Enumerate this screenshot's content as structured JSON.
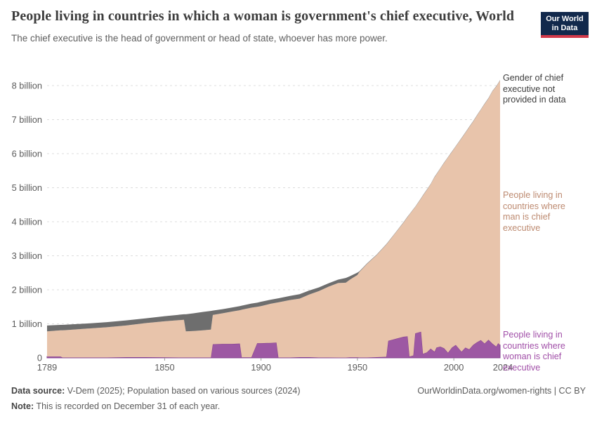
{
  "header": {
    "title": "People living in countries in which a woman is government's chief executive, World",
    "subtitle": "The chief executive is the head of government or head of state, whoever has more power."
  },
  "logo": {
    "line1": "Our World",
    "line2": "in Data",
    "bg": "#12294c",
    "accent": "#d2394a"
  },
  "chart_data": {
    "type": "area",
    "stacked": true,
    "xlim": [
      1789,
      2024
    ],
    "ylim": [
      0,
      8.16
    ],
    "unit": "billion people",
    "years": [
      1789,
      1796,
      1797,
      1800,
      1810,
      1820,
      1830,
      1840,
      1850,
      1860,
      1861,
      1865,
      1870,
      1874,
      1875,
      1880,
      1885,
      1889,
      1890,
      1895,
      1898,
      1900,
      1905,
      1908,
      1909,
      1915,
      1920,
      1925,
      1930,
      1935,
      1940,
      1944,
      1946,
      1950,
      1951,
      1955,
      1960,
      1965,
      1966,
      1970,
      1974,
      1976,
      1977,
      1979,
      1980,
      1983,
      1984,
      1986,
      1988,
      1990,
      1991,
      1993,
      1995,
      1997,
      1999,
      2001,
      2004,
      2006,
      2008,
      2010,
      2012,
      2014,
      2016,
      2018,
      2020,
      2022,
      2023,
      2024
    ],
    "series": [
      {
        "name": "woman-chief-executive",
        "annotation": "People living in\ncountries where\nwoman is chief\nexecutive",
        "color": "#9d58a3",
        "edge": "#83408f",
        "values": [
          0.04,
          0.04,
          0.01,
          0.01,
          0.01,
          0.01,
          0.02,
          0.02,
          0.015,
          0.01,
          0.01,
          0.01,
          0.01,
          0.01,
          0.4,
          0.41,
          0.41,
          0.42,
          0.015,
          0.015,
          0.43,
          0.43,
          0.44,
          0.45,
          0.01,
          0.01,
          0.02,
          0.02,
          0.01,
          0.01,
          0.008,
          0.008,
          0.015,
          0.015,
          0.01,
          0.01,
          0.02,
          0.03,
          0.5,
          0.56,
          0.62,
          0.63,
          0.04,
          0.07,
          0.72,
          0.77,
          0.12,
          0.16,
          0.27,
          0.18,
          0.3,
          0.33,
          0.28,
          0.15,
          0.3,
          0.38,
          0.18,
          0.3,
          0.25,
          0.38,
          0.46,
          0.52,
          0.42,
          0.53,
          0.42,
          0.33,
          0.43,
          0.38
        ]
      },
      {
        "name": "man-chief-executive",
        "annotation": "People living in\ncountries where\nman is chief\nexecutive",
        "color": "#e8c4ab",
        "edge": "",
        "values": [
          0.74,
          0.77,
          0.8,
          0.81,
          0.85,
          0.89,
          0.93,
          1.0,
          1.06,
          1.11,
          0.77,
          0.78,
          0.8,
          0.82,
          0.86,
          0.9,
          0.95,
          0.98,
          1.4,
          1.46,
          1.07,
          1.09,
          1.15,
          1.17,
          1.62,
          1.69,
          1.72,
          1.84,
          1.95,
          2.08,
          2.19,
          2.2,
          2.28,
          2.42,
          2.51,
          2.75,
          3.0,
          3.3,
          2.9,
          3.13,
          3.36,
          3.51,
          4.17,
          4.29,
          3.71,
          3.91,
          4.65,
          4.77,
          4.83,
          5.13,
          5.09,
          5.23,
          5.45,
          5.74,
          5.75,
          5.83,
          6.27,
          6.31,
          6.53,
          6.56,
          6.66,
          6.77,
          7.04,
          7.09,
          7.41,
          7.64,
          7.63,
          7.77
        ]
      },
      {
        "name": "gender-not-provided",
        "annotation": "Gender of chief\nexecutive not\nprovided in data",
        "color": "#6e6e6e",
        "edge": "",
        "values": [
          0.17,
          0.16,
          0.16,
          0.16,
          0.15,
          0.15,
          0.15,
          0.14,
          0.15,
          0.16,
          0.5,
          0.52,
          0.54,
          0.55,
          0.13,
          0.12,
          0.12,
          0.12,
          0.12,
          0.12,
          0.12,
          0.13,
          0.12,
          0.12,
          0.12,
          0.12,
          0.13,
          0.12,
          0.11,
          0.1,
          0.1,
          0.14,
          0.1,
          0.07,
          0.02,
          0.015,
          0.012,
          0.012,
          0.012,
          0.012,
          0.012,
          0.012,
          0.012,
          0.012,
          0.012,
          0.012,
          0.012,
          0.012,
          0.012,
          0.012,
          0.012,
          0.012,
          0.012,
          0.012,
          0.012,
          0.012,
          0.012,
          0.012,
          0.012,
          0.012,
          0.012,
          0.012,
          0.012,
          0.012,
          0.012,
          0.012,
          0.012,
          0.012
        ]
      }
    ],
    "yticks": [
      {
        "value": 0,
        "label": "0"
      },
      {
        "value": 1,
        "label": "1 billion"
      },
      {
        "value": 2,
        "label": "2 billion"
      },
      {
        "value": 3,
        "label": "3 billion"
      },
      {
        "value": 4,
        "label": "4 billion"
      },
      {
        "value": 5,
        "label": "5 billion"
      },
      {
        "value": 6,
        "label": "6 billion"
      },
      {
        "value": 7,
        "label": "7 billion"
      },
      {
        "value": 8,
        "label": "8 billion"
      }
    ],
    "xticks": [
      {
        "year": 1789,
        "label": "1789",
        "tick": false
      },
      {
        "year": 1850,
        "label": "1850",
        "tick": true
      },
      {
        "year": 1900,
        "label": "1900",
        "tick": true
      },
      {
        "year": 1950,
        "label": "1950",
        "tick": true
      },
      {
        "year": 2000,
        "label": "2000",
        "tick": true
      },
      {
        "year": 2024,
        "label": "2024",
        "tick": false
      }
    ],
    "legend_position": "right-annotations",
    "grid": true
  },
  "footer": {
    "source_label": "Data source:",
    "source_text": " V-Dem (2025); Population based on various sources (2024)",
    "note_label": "Note:",
    "note_text": " This is recorded on December 31 of each year.",
    "link": "OurWorldinData.org/women-rights | CC BY"
  }
}
